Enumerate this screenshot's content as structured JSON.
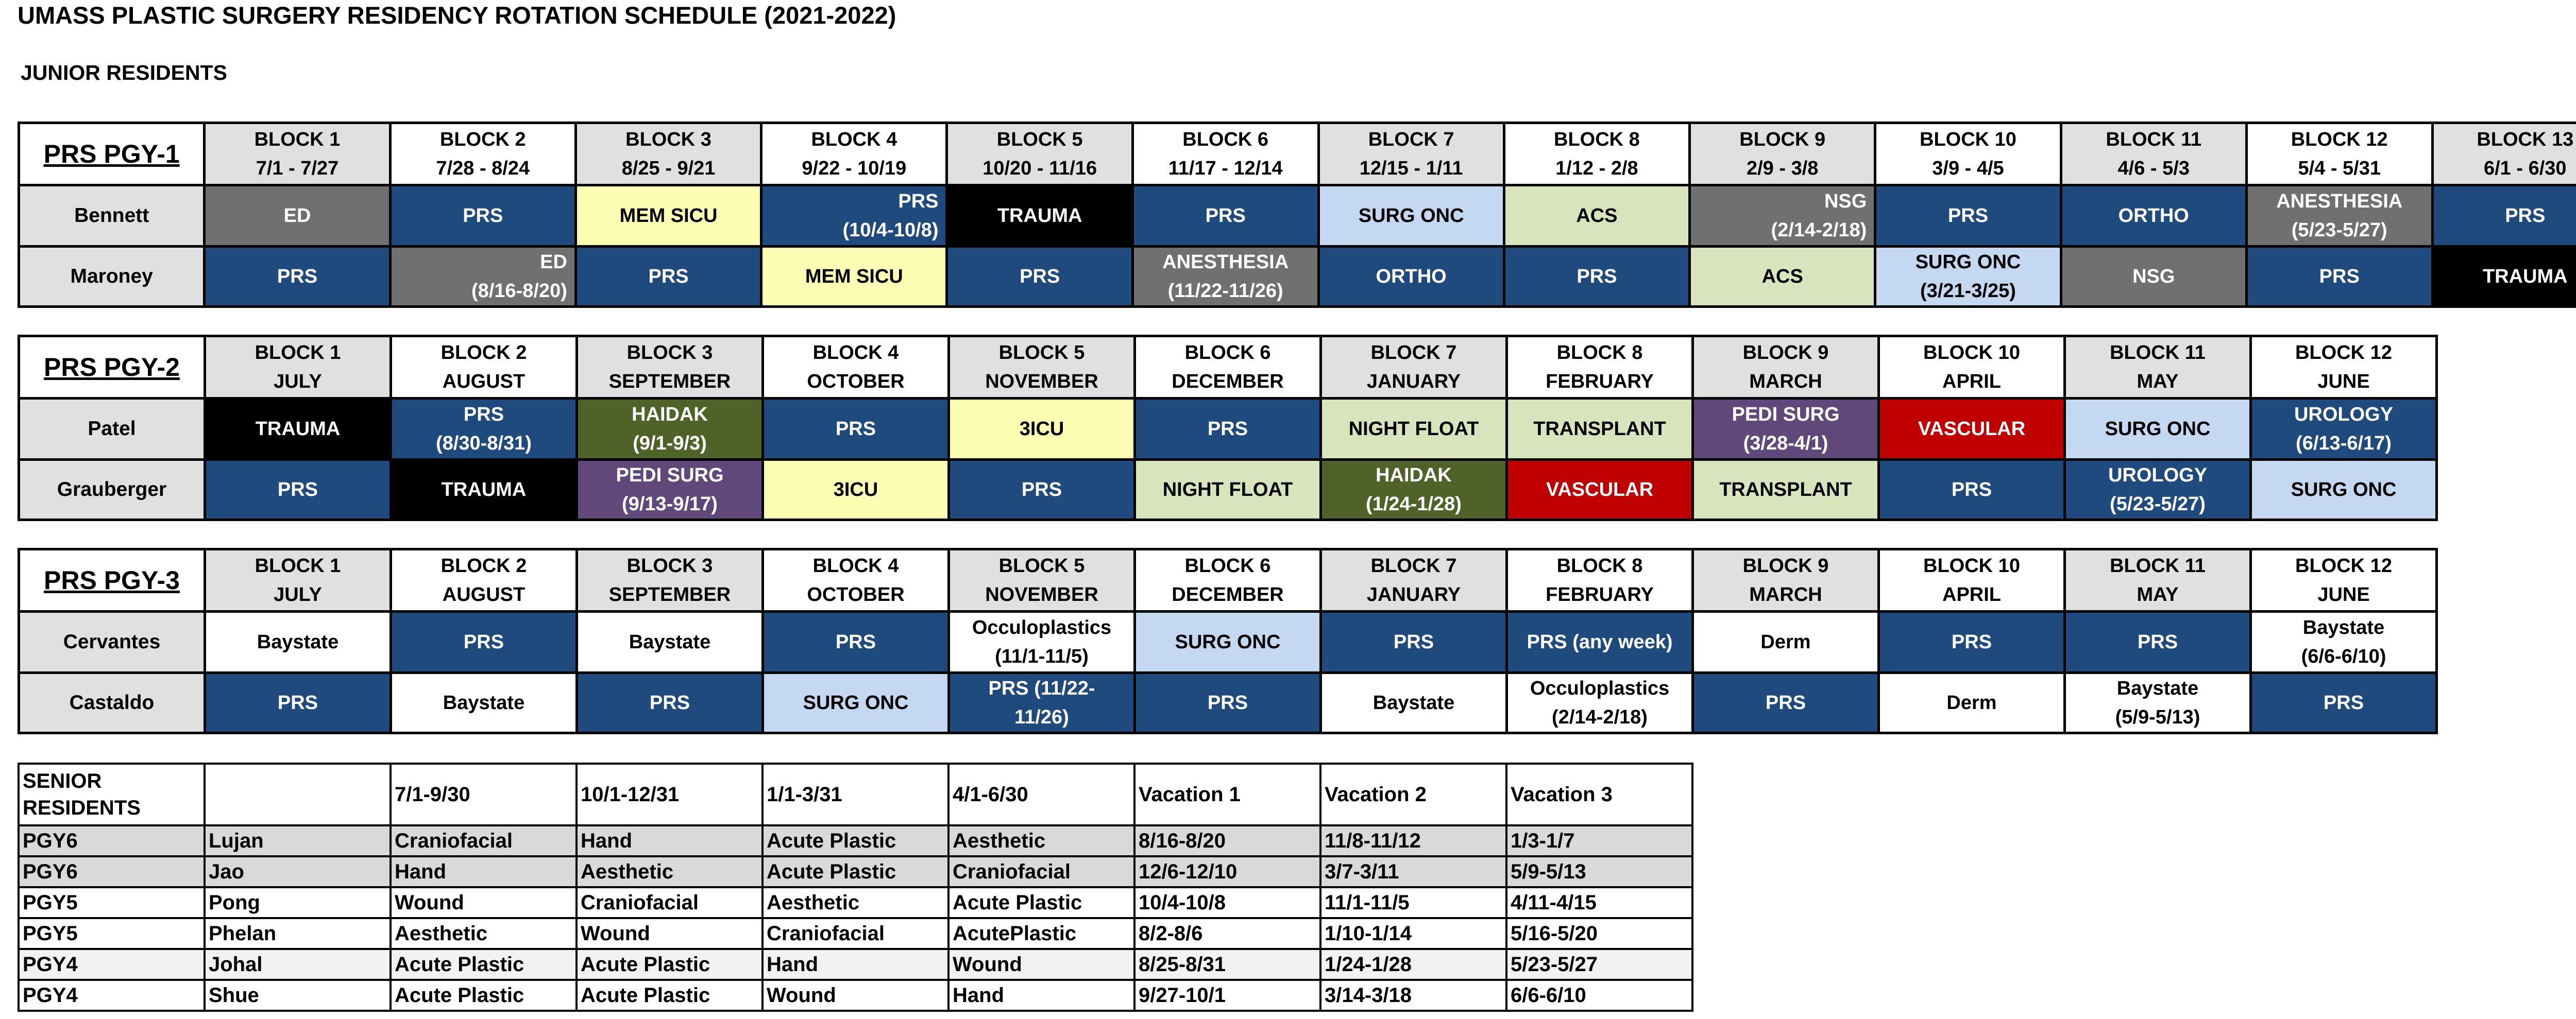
{
  "title": "UMASS PLASTIC SURGERY RESIDENCY ROTATION SCHEDULE (2021-2022)",
  "subtitle": "JUNIOR RESIDENTS",
  "pgy1": {
    "label": "PRS PGY-1",
    "headers": [
      [
        "BLOCK 1",
        "7/1 - 7/27"
      ],
      [
        "BLOCK 2",
        "7/28 - 8/24"
      ],
      [
        "BLOCK 3",
        "8/25 - 9/21"
      ],
      [
        "BLOCK 4",
        "9/22 - 10/19"
      ],
      [
        "BLOCK 5",
        "10/20 - 11/16"
      ],
      [
        "BLOCK 6",
        "11/17 - 12/14"
      ],
      [
        "BLOCK 7",
        "12/15 - 1/11"
      ],
      [
        "BLOCK 8",
        "1/12 - 2/8"
      ],
      [
        "BLOCK 9",
        "2/9 - 3/8"
      ],
      [
        "BLOCK 10",
        "3/9 - 4/5"
      ],
      [
        "BLOCK 11",
        "4/6 - 5/3"
      ],
      [
        "BLOCK 12",
        "5/4 - 5/31"
      ],
      [
        "BLOCK 13",
        "6/1 - 6/30"
      ]
    ],
    "rows": [
      {
        "name": "Bennett",
        "cells": [
          [
            "ED",
            ""
          ],
          [
            "PRS",
            ""
          ],
          [
            "MEM SICU",
            ""
          ],
          [
            "PRS",
            "(10/4-10/8)"
          ],
          [
            "TRAUMA",
            ""
          ],
          [
            "PRS",
            ""
          ],
          [
            "SURG ONC",
            ""
          ],
          [
            "ACS",
            ""
          ],
          [
            "NSG",
            "(2/14-2/18)"
          ],
          [
            "PRS",
            ""
          ],
          [
            "ORTHO",
            ""
          ],
          [
            "ANESTHESIA",
            "(5/23-5/27)"
          ],
          [
            "PRS",
            ""
          ]
        ]
      },
      {
        "name": "Maroney",
        "cells": [
          [
            "PRS",
            ""
          ],
          [
            "ED",
            "(8/16-8/20)"
          ],
          [
            "PRS",
            ""
          ],
          [
            "MEM SICU",
            ""
          ],
          [
            "PRS",
            ""
          ],
          [
            "ANESTHESIA",
            "(11/22-11/26)"
          ],
          [
            "ORTHO",
            ""
          ],
          [
            "PRS",
            ""
          ],
          [
            "ACS",
            ""
          ],
          [
            "SURG ONC",
            "(3/21-3/25)"
          ],
          [
            "NSG",
            ""
          ],
          [
            "PRS",
            ""
          ],
          [
            "TRAUMA",
            ""
          ]
        ]
      }
    ]
  },
  "pgy2": {
    "label": "PRS PGY-2",
    "headers": [
      [
        "BLOCK 1",
        "JULY"
      ],
      [
        "BLOCK 2",
        "AUGUST"
      ],
      [
        "BLOCK 3",
        "SEPTEMBER"
      ],
      [
        "BLOCK 4",
        "OCTOBER"
      ],
      [
        "BLOCK 5",
        "NOVEMBER"
      ],
      [
        "BLOCK 6",
        "DECEMBER"
      ],
      [
        "BLOCK 7",
        "JANUARY"
      ],
      [
        "BLOCK 8",
        "FEBRUARY"
      ],
      [
        "BLOCK 9",
        "MARCH"
      ],
      [
        "BLOCK 10",
        "APRIL"
      ],
      [
        "BLOCK 11",
        "MAY"
      ],
      [
        "BLOCK 12",
        "JUNE"
      ]
    ],
    "rows": [
      {
        "name": "Patel",
        "cells": [
          [
            "TRAUMA",
            ""
          ],
          [
            "PRS",
            "(8/30-8/31)"
          ],
          [
            "HAIDAK",
            "(9/1-9/3)"
          ],
          [
            "PRS",
            ""
          ],
          [
            "3ICU",
            ""
          ],
          [
            "PRS",
            ""
          ],
          [
            "NIGHT FLOAT",
            ""
          ],
          [
            "TRANSPLANT",
            ""
          ],
          [
            "PEDI SURG",
            "(3/28-4/1)"
          ],
          [
            "VASCULAR",
            ""
          ],
          [
            "SURG ONC",
            ""
          ],
          [
            "UROLOGY",
            "(6/13-6/17)"
          ]
        ]
      },
      {
        "name": "Grauberger",
        "cells": [
          [
            "PRS",
            ""
          ],
          [
            "TRAUMA",
            ""
          ],
          [
            "PEDI SURG",
            "(9/13-9/17)"
          ],
          [
            "3ICU",
            ""
          ],
          [
            "PRS",
            ""
          ],
          [
            "NIGHT FLOAT",
            ""
          ],
          [
            "HAIDAK",
            "(1/24-1/28)"
          ],
          [
            "VASCULAR",
            ""
          ],
          [
            "TRANSPLANT",
            ""
          ],
          [
            "PRS",
            ""
          ],
          [
            "UROLOGY",
            "(5/23-5/27)"
          ],
          [
            "SURG ONC",
            ""
          ]
        ]
      }
    ]
  },
  "pgy3": {
    "label": "PRS PGY-3",
    "headers": [
      [
        "BLOCK 1",
        "JULY"
      ],
      [
        "BLOCK 2",
        "AUGUST"
      ],
      [
        "BLOCK 3",
        "SEPTEMBER"
      ],
      [
        "BLOCK 4",
        "OCTOBER"
      ],
      [
        "BLOCK 5",
        "NOVEMBER"
      ],
      [
        "BLOCK 6",
        "DECEMBER"
      ],
      [
        "BLOCK 7",
        "JANUARY"
      ],
      [
        "BLOCK 8",
        "FEBRUARY"
      ],
      [
        "BLOCK 9",
        "MARCH"
      ],
      [
        "BLOCK 10",
        "APRIL"
      ],
      [
        "BLOCK 11",
        "MAY"
      ],
      [
        "BLOCK 12",
        "JUNE"
      ]
    ],
    "rows": [
      {
        "name": "Cervantes",
        "cells": [
          [
            "Baystate",
            ""
          ],
          [
            "PRS",
            ""
          ],
          [
            "Baystate",
            ""
          ],
          [
            "PRS",
            ""
          ],
          [
            "Occuloplastics",
            "(11/1-11/5)"
          ],
          [
            "SURG ONC",
            ""
          ],
          [
            "PRS",
            ""
          ],
          [
            "PRS (any week)",
            ""
          ],
          [
            "Derm",
            ""
          ],
          [
            "PRS",
            ""
          ],
          [
            "PRS",
            ""
          ],
          [
            "Baystate",
            "(6/6-6/10)"
          ]
        ]
      },
      {
        "name": "Castaldo",
        "cells": [
          [
            "PRS",
            ""
          ],
          [
            "Baystate",
            ""
          ],
          [
            "PRS",
            ""
          ],
          [
            "SURG ONC",
            ""
          ],
          [
            "PRS      (11/22-",
            "11/26)"
          ],
          [
            "PRS",
            ""
          ],
          [
            "Baystate",
            ""
          ],
          [
            "Occuloplastics",
            "(2/14-2/18)"
          ],
          [
            "PRS",
            ""
          ],
          [
            "Derm",
            ""
          ],
          [
            "Baystate",
            "(5/9-5/13)"
          ],
          [
            "PRS",
            ""
          ]
        ]
      }
    ]
  },
  "senior": {
    "headers": [
      "SENIOR RESIDENTS",
      "",
      "7/1-9/30",
      "10/1-12/31",
      "1/1-3/31",
      "4/1-6/30",
      "Vacation 1",
      "Vacation 2",
      "Vacation 3"
    ],
    "rows": [
      [
        "PGY6",
        "Lujan",
        "Craniofacial",
        "Hand",
        "Acute Plastic",
        "Aesthetic",
        "8/16-8/20",
        "11/8-11/12",
        "1/3-1/7"
      ],
      [
        "PGY6",
        "Jao",
        "Hand",
        "Aesthetic",
        "Acute Plastic",
        "Craniofacial",
        "12/6-12/10",
        "3/7-3/11",
        "5/9-5/13"
      ],
      [
        "PGY5",
        "Pong",
        "Wound",
        "Craniofacial",
        "Aesthetic",
        "Acute Plastic",
        "10/4-10/8",
        "11/1-11/5",
        "4/11-4/15"
      ],
      [
        "PGY5",
        "Phelan",
        "Aesthetic",
        "Wound",
        "Craniofacial",
        "AcutePlastic",
        "8/2-8/6",
        "1/10-1/14",
        "5/16-5/20"
      ],
      [
        "PGY4",
        "Johal",
        "Acute Plastic",
        "Acute Plastic",
        "Hand",
        "Wound",
        "8/25-8/31",
        "1/24-1/28",
        "5/23-5/27"
      ],
      [
        "PGY4",
        "Shue",
        "Acute Plastic",
        "Acute Plastic",
        "Wound",
        "Hand",
        "9/27-10/1",
        "3/14-3/18",
        "6/6-6/10"
      ]
    ]
  },
  "colors": {
    "navy": "#1e4a7e",
    "gray": "#707070",
    "black": "#000000",
    "yellow": "#fdfdb4",
    "light_blue": "#c4d9f1",
    "light_green": "#d8e4bc",
    "olive": "#4f6228",
    "purple": "#60497a",
    "red": "#c00000",
    "white": "#ffffff"
  }
}
